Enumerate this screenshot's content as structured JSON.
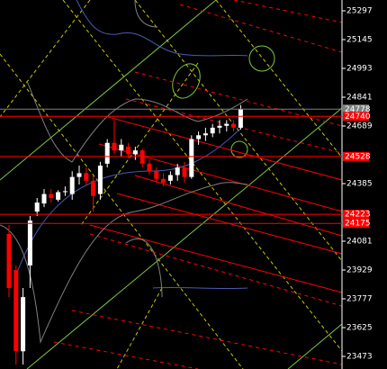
{
  "chart_data": {
    "type": "candlestick",
    "ylim": [
      23406.5,
      25354
    ],
    "yticks": [
      25297,
      25145,
      24993,
      24841,
      24689,
      24385,
      24081,
      23929,
      23777,
      23625,
      23473
    ],
    "up_color": "#ffffff",
    "down_color": "#ff0000",
    "candles": [
      {
        "open": 24119,
        "high": 24166,
        "low": 23786,
        "close": 23834
      },
      {
        "open": 23929,
        "high": 23953,
        "low": 23430,
        "close": 23501
      },
      {
        "open": 23500,
        "high": 23834,
        "low": 23430,
        "close": 23786
      },
      {
        "open": 23953,
        "high": 24214,
        "low": 23834,
        "close": 24190
      },
      {
        "open": 24237,
        "high": 24309,
        "low": 24214,
        "close": 24285
      },
      {
        "open": 24280,
        "high": 24356,
        "low": 24261,
        "close": 24330
      },
      {
        "open": 24330,
        "high": 24356,
        "low": 24285,
        "close": 24309
      },
      {
        "open": 24300,
        "high": 24350,
        "low": 24290,
        "close": 24340
      },
      {
        "open": 24340,
        "high": 24370,
        "low": 24320,
        "close": 24345
      },
      {
        "open": 24330,
        "high": 24450,
        "low": 24300,
        "close": 24420
      },
      {
        "open": 24420,
        "high": 24480,
        "low": 24380,
        "close": 24440
      },
      {
        "open": 24440,
        "high": 24470,
        "low": 24380,
        "close": 24400
      },
      {
        "open": 24400,
        "high": 24430,
        "low": 24237,
        "close": 24320
      },
      {
        "open": 24330,
        "high": 24500,
        "low": 24300,
        "close": 24480
      },
      {
        "open": 24490,
        "high": 24620,
        "low": 24470,
        "close": 24600
      },
      {
        "open": 24600,
        "high": 24720,
        "low": 24540,
        "close": 24560
      },
      {
        "open": 24560,
        "high": 24620,
        "low": 24530,
        "close": 24590
      },
      {
        "open": 24580,
        "high": 24600,
        "low": 24520,
        "close": 24540
      },
      {
        "open": 24540,
        "high": 24580,
        "low": 24510,
        "close": 24560
      },
      {
        "open": 24560,
        "high": 24570,
        "low": 24470,
        "close": 24490
      },
      {
        "open": 24490,
        "high": 24510,
        "low": 24430,
        "close": 24450
      },
      {
        "open": 24450,
        "high": 24470,
        "low": 24390,
        "close": 24410
      },
      {
        "open": 24410,
        "high": 24440,
        "low": 24370,
        "close": 24390
      },
      {
        "open": 24400,
        "high": 24450,
        "low": 24380,
        "close": 24430
      },
      {
        "open": 24430,
        "high": 24490,
        "low": 24400,
        "close": 24470
      },
      {
        "open": 24470,
        "high": 24500,
        "low": 24390,
        "close": 24420
      },
      {
        "open": 24420,
        "high": 24640,
        "low": 24410,
        "close": 24620
      },
      {
        "open": 24620,
        "high": 24660,
        "low": 24590,
        "close": 24640
      },
      {
        "open": 24640,
        "high": 24680,
        "low": 24610,
        "close": 24650
      },
      {
        "open": 24650,
        "high": 24700,
        "low": 24630,
        "close": 24680
      },
      {
        "open": 24680,
        "high": 24720,
        "low": 24650,
        "close": 24690
      },
      {
        "open": 24690,
        "high": 24720,
        "low": 24660,
        "close": 24700
      },
      {
        "open": 24700,
        "high": 24720,
        "low": 24660,
        "close": 24680
      },
      {
        "open": 24680,
        "high": 24800,
        "low": 24670,
        "close": 24778
      }
    ],
    "price_lines": [
      {
        "value": 24778,
        "color": "#808080"
      },
      {
        "value": 24740,
        "color": "#ff0000"
      },
      {
        "value": 24528,
        "color": "#ff0000"
      },
      {
        "value": 24223,
        "color": "#ff0000"
      },
      {
        "value": 24175,
        "color": "#ff0000"
      }
    ]
  }
}
